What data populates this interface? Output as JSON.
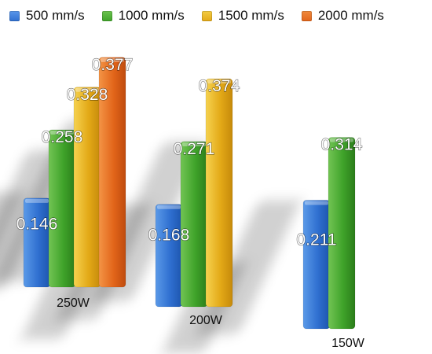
{
  "chart_data": {
    "type": "bar",
    "legend_position": "top",
    "grid": false,
    "series": [
      {
        "name": "500 mm/s",
        "color": "#2f6fd0"
      },
      {
        "name": "1000 mm/s",
        "color": "#3fa32a"
      },
      {
        "name": "1500 mm/s",
        "color": "#e3a917"
      },
      {
        "name": "2000 mm/s",
        "color": "#e2651a"
      }
    ],
    "groups": [
      {
        "label": "250W",
        "values": [
          0.146,
          0.258,
          0.328,
          0.377
        ]
      },
      {
        "label": "200W",
        "values": [
          0.168,
          0.271,
          0.374,
          null
        ]
      },
      {
        "label": "150W",
        "values": [
          0.211,
          0.314,
          null,
          null
        ]
      }
    ],
    "value_labels": [
      [
        "0.146",
        "0.258",
        "0.328",
        "0.377"
      ],
      [
        "0.168",
        "0.271",
        "0.374",
        null
      ],
      [
        "0.211",
        "0.314",
        null,
        null
      ]
    ]
  }
}
